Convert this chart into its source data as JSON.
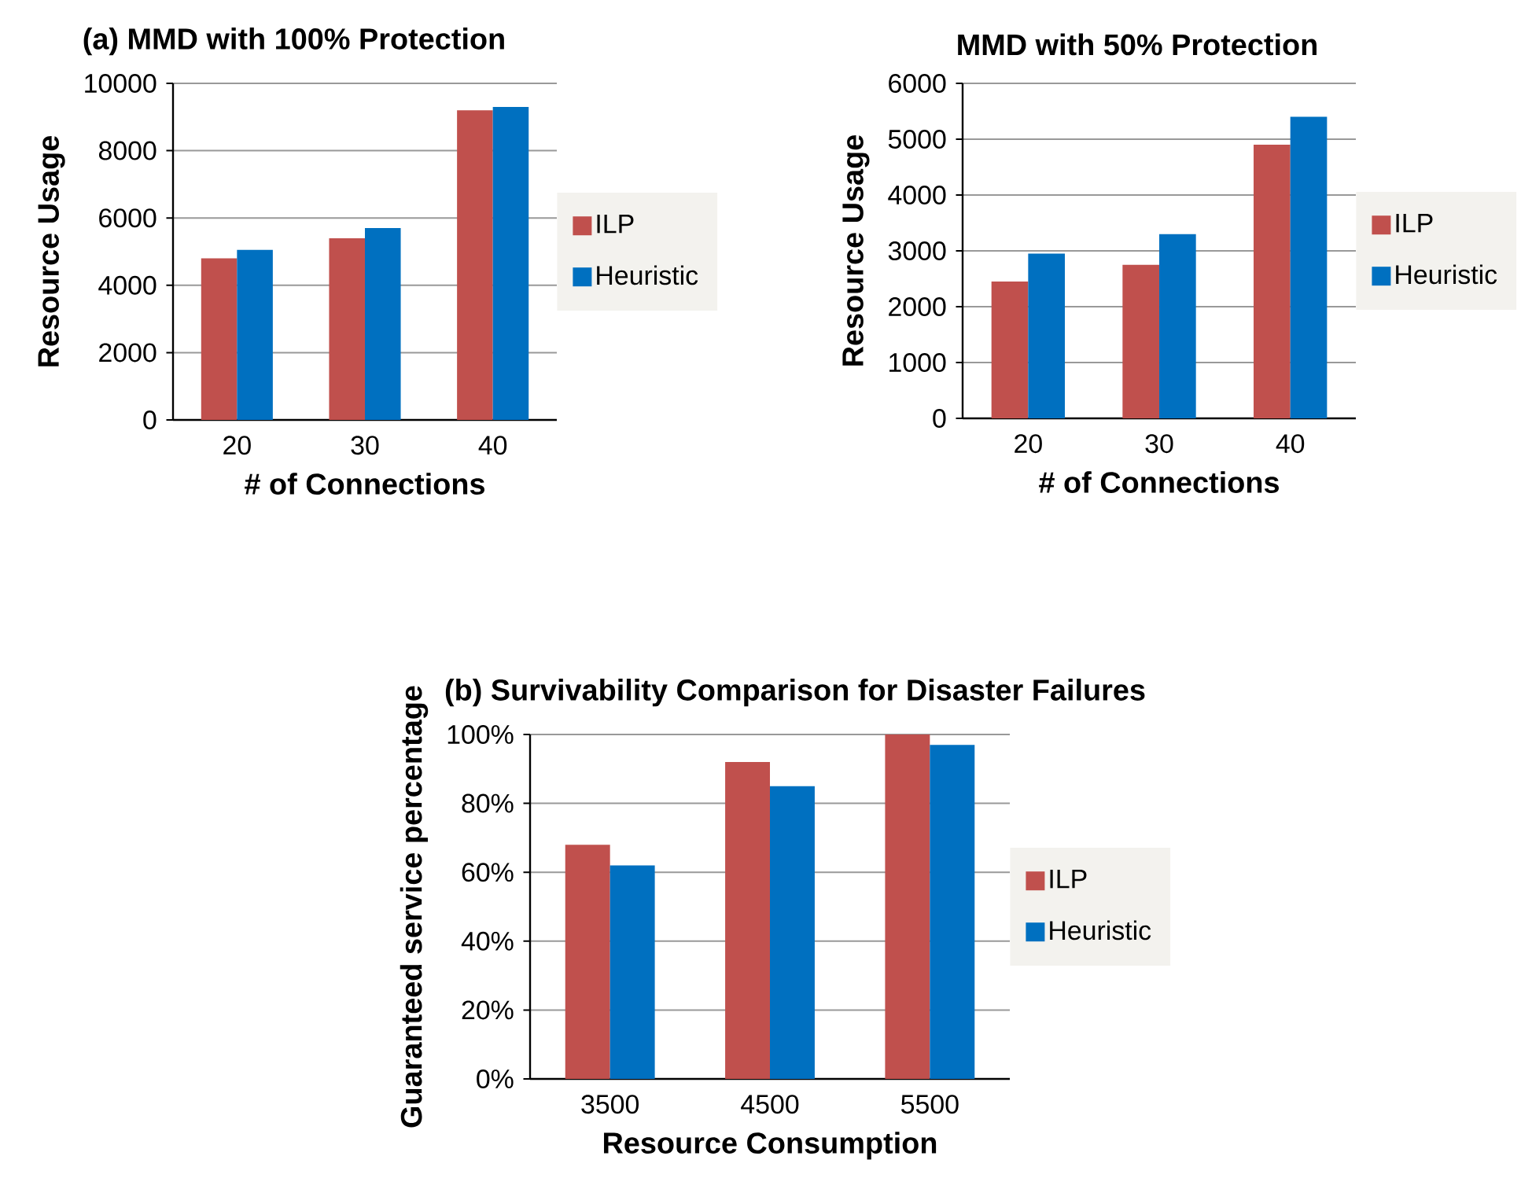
{
  "chart_data": [
    {
      "type": "bar",
      "title": "(a) MMD with 100% Protection",
      "xlabel": "# of Connections",
      "ylabel": "Resource Usage",
      "categories": [
        "20",
        "30",
        "40"
      ],
      "series": [
        {
          "name": "ILP",
          "color": "#c0504d",
          "values": [
            4800,
            5400,
            9200
          ]
        },
        {
          "name": "Heuristic",
          "color": "#0070c0",
          "values": [
            5050,
            5700,
            9300
          ]
        }
      ],
      "ylim": [
        0,
        10000
      ],
      "yticks": [
        0,
        2000,
        4000,
        6000,
        8000,
        10000
      ],
      "grid": "y",
      "legend": "right"
    },
    {
      "type": "bar",
      "title": "MMD with 50% Protection",
      "xlabel": "# of Connections",
      "ylabel": "Resource Usage",
      "categories": [
        "20",
        "30",
        "40"
      ],
      "series": [
        {
          "name": "ILP",
          "color": "#c0504d",
          "values": [
            2450,
            2750,
            4900
          ]
        },
        {
          "name": "Heuristic",
          "color": "#0070c0",
          "values": [
            2950,
            3300,
            5400
          ]
        }
      ],
      "ylim": [
        0,
        6000
      ],
      "yticks": [
        0,
        1000,
        2000,
        3000,
        4000,
        5000,
        6000
      ],
      "grid": "y",
      "legend": "right"
    },
    {
      "type": "bar",
      "title": "(b) Survivability Comparison for Disaster Failures",
      "xlabel": "Resource Consumption",
      "ylabel": "Guaranteed service percentage",
      "categories": [
        "3500",
        "4500",
        "5500"
      ],
      "series": [
        {
          "name": "ILP",
          "color": "#c0504d",
          "values": [
            68,
            92,
            100
          ]
        },
        {
          "name": "Heuristic",
          "color": "#0070c0",
          "values": [
            62,
            85,
            97
          ]
        }
      ],
      "ylim": [
        0,
        100
      ],
      "yticks": [
        {
          "value": 0,
          "label": "0%"
        },
        {
          "value": 20,
          "label": "20%"
        },
        {
          "value": 40,
          "label": "40%"
        },
        {
          "value": 60,
          "label": "60%"
        },
        {
          "value": 80,
          "label": "80%"
        },
        {
          "value": 100,
          "label": "100%"
        }
      ],
      "grid": "y",
      "legend": "right"
    }
  ]
}
